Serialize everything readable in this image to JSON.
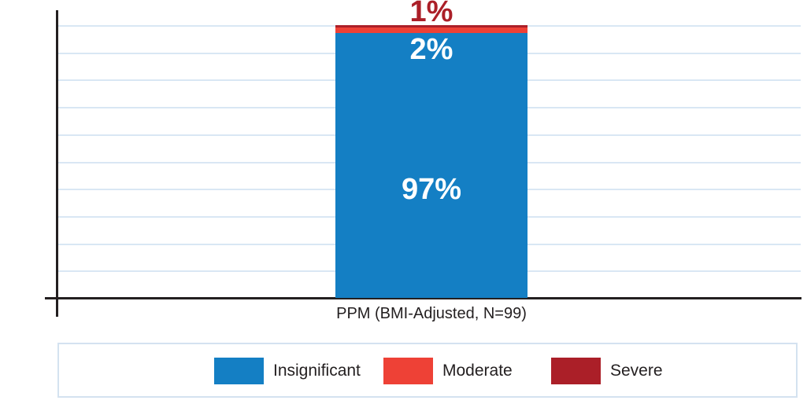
{
  "chart_data": {
    "type": "bar",
    "subtype": "stacked-100-percent",
    "title": "",
    "xlabel": "",
    "ylabel": "",
    "categories": [
      "PPM (BMI-Adjusted, N=99)"
    ],
    "series": [
      {
        "name": "Insignificant",
        "values": [
          97
        ],
        "data_label": "97%",
        "color": "#147fc4",
        "label_color": "#ffffff"
      },
      {
        "name": "Moderate",
        "values": [
          2
        ],
        "data_label": "2%",
        "color": "#ee4136",
        "label_color": "#ffffff"
      },
      {
        "name": "Severe",
        "values": [
          1
        ],
        "data_label": "1%",
        "color": "#ab1f28",
        "label_color": "#ab1f28"
      }
    ],
    "ylim": [
      0,
      100
    ],
    "grid": true,
    "gridline_interval": 10,
    "gridline_color": "#d9e7f4",
    "axis_color": "#231f20",
    "legend_position": "bottom"
  }
}
